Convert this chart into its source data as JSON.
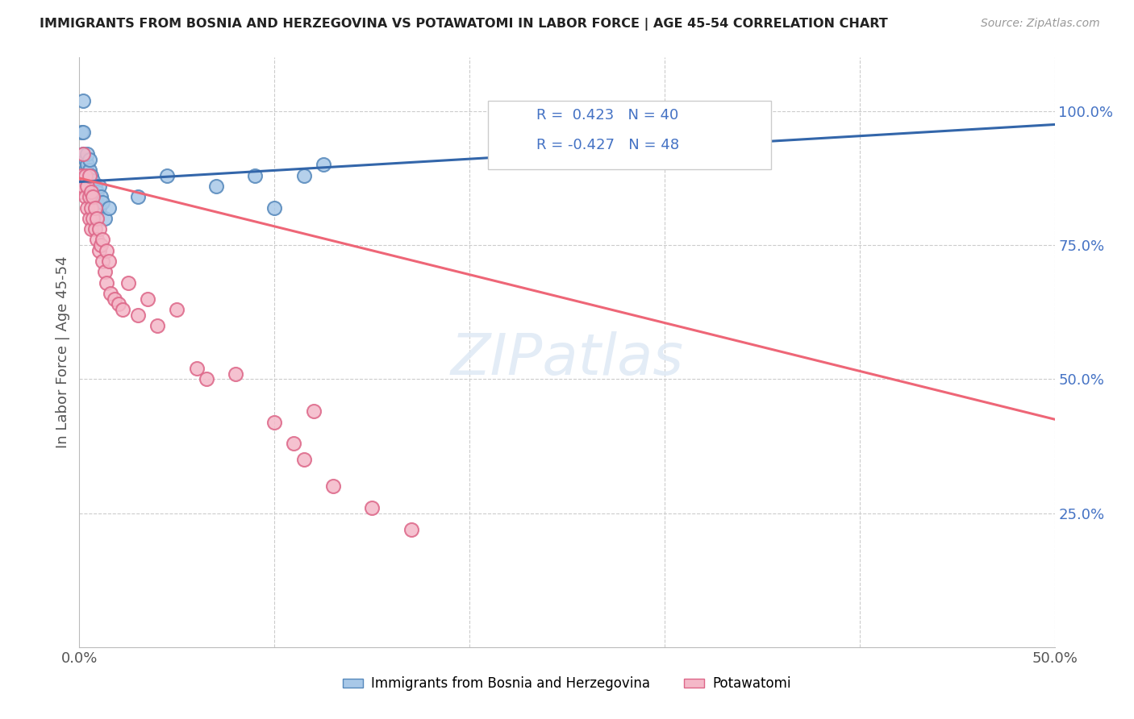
{
  "title": "IMMIGRANTS FROM BOSNIA AND HERZEGOVINA VS POTAWATOMI IN LABOR FORCE | AGE 45-54 CORRELATION CHART",
  "source": "Source: ZipAtlas.com",
  "ylabel": "In Labor Force | Age 45-54",
  "xlim": [
    0.0,
    0.5
  ],
  "ylim": [
    0.0,
    1.1
  ],
  "xtick_positions": [
    0.0,
    0.1,
    0.2,
    0.3,
    0.4,
    0.5
  ],
  "xtick_labels": [
    "0.0%",
    "",
    "",
    "",
    "",
    "50.0%"
  ],
  "yticks_right": [
    0.25,
    0.5,
    0.75,
    1.0
  ],
  "ytick_labels_right": [
    "25.0%",
    "50.0%",
    "75.0%",
    "100.0%"
  ],
  "bosnia_R": 0.423,
  "bosnia_N": 40,
  "potawatomi_R": -0.427,
  "potawatomi_N": 48,
  "bosnia_color": "#a8c8e8",
  "potawatomi_color": "#f4b8c8",
  "bosnia_edge_color": "#5588bb",
  "potawatomi_edge_color": "#dd6688",
  "bosnia_line_color": "#3366aa",
  "potawatomi_line_color": "#ee6677",
  "legend_label_bosnia": "Immigrants from Bosnia and Herzegovina",
  "legend_label_potawatomi": "Potawatomi",
  "bosnia_line_x0": 0.0,
  "bosnia_line_y0": 0.868,
  "bosnia_line_x1": 0.5,
  "bosnia_line_y1": 0.975,
  "potawatomi_line_x0": 0.0,
  "potawatomi_line_y0": 0.875,
  "potawatomi_line_x1": 0.5,
  "potawatomi_line_y1": 0.425,
  "bosnia_x": [
    0.001,
    0.001,
    0.002,
    0.002,
    0.002,
    0.002,
    0.003,
    0.003,
    0.003,
    0.004,
    0.004,
    0.004,
    0.004,
    0.005,
    0.005,
    0.005,
    0.005,
    0.006,
    0.006,
    0.006,
    0.007,
    0.007,
    0.007,
    0.008,
    0.008,
    0.009,
    0.009,
    0.01,
    0.01,
    0.011,
    0.012,
    0.013,
    0.015,
    0.03,
    0.045,
    0.07,
    0.09,
    0.1,
    0.115,
    0.125
  ],
  "bosnia_y": [
    0.96,
    0.88,
    1.02,
    0.96,
    0.92,
    0.88,
    0.87,
    0.89,
    0.91,
    0.86,
    0.88,
    0.9,
    0.92,
    0.85,
    0.87,
    0.89,
    0.91,
    0.84,
    0.86,
    0.88,
    0.83,
    0.85,
    0.87,
    0.84,
    0.86,
    0.83,
    0.85,
    0.82,
    0.86,
    0.84,
    0.83,
    0.8,
    0.82,
    0.84,
    0.88,
    0.86,
    0.88,
    0.82,
    0.88,
    0.9
  ],
  "potawatomi_x": [
    0.001,
    0.001,
    0.002,
    0.002,
    0.003,
    0.003,
    0.004,
    0.004,
    0.005,
    0.005,
    0.005,
    0.006,
    0.006,
    0.006,
    0.007,
    0.007,
    0.008,
    0.008,
    0.009,
    0.009,
    0.01,
    0.01,
    0.011,
    0.012,
    0.012,
    0.013,
    0.014,
    0.014,
    0.015,
    0.016,
    0.018,
    0.02,
    0.022,
    0.025,
    0.03,
    0.035,
    0.04,
    0.05,
    0.06,
    0.065,
    0.08,
    0.1,
    0.11,
    0.115,
    0.12,
    0.13,
    0.15,
    0.17
  ],
  "potawatomi_y": [
    0.88,
    0.85,
    0.86,
    0.92,
    0.84,
    0.88,
    0.82,
    0.86,
    0.8,
    0.84,
    0.88,
    0.82,
    0.85,
    0.78,
    0.8,
    0.84,
    0.78,
    0.82,
    0.76,
    0.8,
    0.74,
    0.78,
    0.75,
    0.72,
    0.76,
    0.7,
    0.74,
    0.68,
    0.72,
    0.66,
    0.65,
    0.64,
    0.63,
    0.68,
    0.62,
    0.65,
    0.6,
    0.63,
    0.52,
    0.5,
    0.51,
    0.42,
    0.38,
    0.35,
    0.44,
    0.3,
    0.26,
    0.22
  ]
}
